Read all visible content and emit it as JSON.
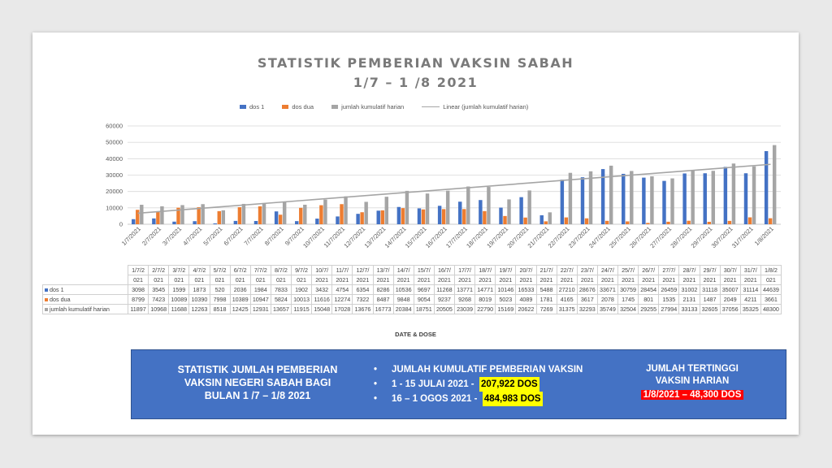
{
  "title_line1": "STATISTIK PEMBERIAN VAKSIN SABAH",
  "title_line2": "1/7 – 1 /8 2021",
  "legend": {
    "dos1": "dos 1",
    "dos2": "dos dua",
    "kumulatif": "jumlah kumulatif harian",
    "linear": "Linear (jumlah kumulatif harian)"
  },
  "colors": {
    "dos1": "#4472c4",
    "dos2": "#ed7d31",
    "kumulatif": "#a5a5a5",
    "linear": "#a5a5a5",
    "banner": "#4472c4"
  },
  "chart_data": {
    "type": "bar",
    "categories": [
      "1/7/2021",
      "2/7/2021",
      "3/7/2021",
      "4/7/2021",
      "5/7/2021",
      "6/7/2021",
      "7/7/2021",
      "8/7/2021",
      "9/7/2021",
      "10/7/2021",
      "11/7/2021",
      "12/7/2021",
      "13/7/2021",
      "14/7/2021",
      "15/7/2021",
      "16/7/2021",
      "17/7/2021",
      "18/7/2021",
      "19/7/2021",
      "20/7/2021",
      "21/7/2021",
      "22/7/2021",
      "23/7/2021",
      "24/7/2021",
      "25/7/2021",
      "26/7/2021",
      "27/7/2021",
      "28/7/2021",
      "29/7/2021",
      "30/7/2021",
      "31/7/2021",
      "1/8/2021"
    ],
    "table_categories": [
      [
        "1/7/2",
        "021"
      ],
      [
        "2/7/2",
        "021"
      ],
      [
        "3/7/2",
        "021"
      ],
      [
        "4/7/2",
        "021"
      ],
      [
        "5/7/2",
        "021"
      ],
      [
        "6/7/2",
        "021"
      ],
      [
        "7/7/2",
        "021"
      ],
      [
        "8/7/2",
        "021"
      ],
      [
        "9/7/2",
        "021"
      ],
      [
        "10/7/",
        "2021"
      ],
      [
        "11/7/",
        "2021"
      ],
      [
        "12/7/",
        "2021"
      ],
      [
        "13/7/",
        "2021"
      ],
      [
        "14/7/",
        "2021"
      ],
      [
        "15/7/",
        "2021"
      ],
      [
        "16/7/",
        "2021"
      ],
      [
        "17/7/",
        "2021"
      ],
      [
        "18/7/",
        "2021"
      ],
      [
        "19/7/",
        "2021"
      ],
      [
        "20/7/",
        "2021"
      ],
      [
        "21/7/",
        "2021"
      ],
      [
        "22/7/",
        "2021"
      ],
      [
        "23/7/",
        "2021"
      ],
      [
        "24/7/",
        "2021"
      ],
      [
        "25/7/",
        "2021"
      ],
      [
        "26/7/",
        "2021"
      ],
      [
        "27/7/",
        "2021"
      ],
      [
        "28/7/",
        "2021"
      ],
      [
        "29/7/",
        "2021"
      ],
      [
        "30/7/",
        "2021"
      ],
      [
        "31/7/",
        "2021"
      ],
      [
        "1/8/2",
        "021"
      ]
    ],
    "series": [
      {
        "name": "dos 1",
        "values": [
          3098,
          3545,
          1599,
          1873,
          520,
          2036,
          1984,
          7833,
          1902,
          3432,
          4754,
          6354,
          8286,
          10536,
          9697,
          11268,
          13771,
          14771,
          10146,
          16533,
          5488,
          27210,
          28676,
          33671,
          30759,
          28454,
          26459,
          31002,
          31118,
          35007,
          31114,
          44639
        ]
      },
      {
        "name": "dos dua",
        "values": [
          8799,
          7423,
          10089,
          10390,
          7998,
          10389,
          10947,
          5824,
          10013,
          11616,
          12274,
          7322,
          8487,
          9848,
          9054,
          9237,
          9268,
          8019,
          5023,
          4089,
          1781,
          4165,
          3617,
          2078,
          1745,
          801,
          1535,
          2131,
          1487,
          2049,
          4211,
          3661
        ]
      },
      {
        "name": "jumlah kumulatif harian",
        "values": [
          11897,
          10968,
          11688,
          12263,
          8518,
          12425,
          12931,
          13657,
          11915,
          15048,
          17028,
          13676,
          16773,
          20384,
          18751,
          20505,
          23039,
          22790,
          15169,
          20622,
          7269,
          31375,
          32293,
          35749,
          32504,
          29255,
          27994,
          33133,
          32605,
          37056,
          35325,
          48300
        ]
      }
    ],
    "trendline": {
      "name": "Linear (jumlah kumulatif harian)",
      "of": "jumlah kumulatif harian"
    },
    "yticks": [
      "0",
      "10000",
      "20000",
      "30000",
      "40000",
      "50000",
      "60000"
    ],
    "ylim": [
      0,
      60000
    ],
    "xlabel": "DATE & DOSE",
    "grid": true,
    "legend_position": "top"
  },
  "banner": {
    "left_lines": [
      "STATISTIK JUMLAH PEMBERIAN",
      "VAKSIN NEGERI SABAH BAGI",
      "BULAN 1 /7 – 1/8  2021"
    ],
    "bullet": "•",
    "item1": "JUMLAH KUMULATIF PEMBERIAN VAKSIN",
    "item2_label": "1 - 15 JULAI 2021  -",
    "item2_value": "207,922 DOS",
    "item3_label": "16 – 1 OGOS 2021  -",
    "item3_value": "484,983 DOS",
    "right_lines": [
      "JUMLAH TERTINGGI",
      "VAKSIN HARIAN"
    ],
    "right_value": "1/8/2021 – 48,300 DOS"
  }
}
